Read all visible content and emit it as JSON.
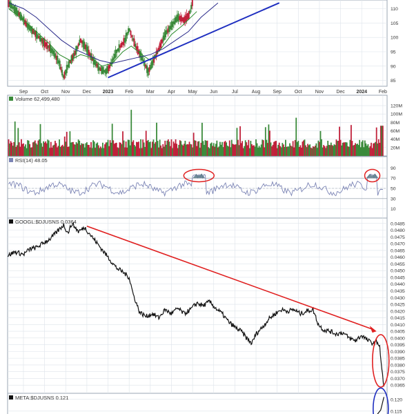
{
  "colors": {
    "background": "#ffffff",
    "panel_border": "#9aa6b3",
    "grid": "#dde3ea",
    "up_bar": "#3a8a3a",
    "down_bar": "#c0203a",
    "price_ma_fast": "#2a8a2a",
    "price_ma_slow": "#2a2a8a",
    "trendline_blue": "#1f2fc0",
    "rsi_line": "#7b84b5",
    "rsi_fill": "#5a7a8a",
    "ratio_line": "#111111",
    "trendline_red": "#e02020",
    "highlight_red": "#e02020",
    "highlight_blue": "#1f2fc0",
    "axis_text": "#333333"
  },
  "chart_data": [
    {
      "type": "candlestick",
      "name": "price-panel",
      "y_ticks": [
        "110",
        "105",
        "100",
        "95",
        "90",
        "85"
      ],
      "y_tick_values": [
        110,
        105,
        100,
        95,
        90,
        85
      ],
      "ylim": [
        83,
        113
      ],
      "x_ticks": [
        "Sep",
        "Oct",
        "Nov",
        "Dec",
        "2023",
        "Feb",
        "Mar",
        "Apr",
        "May",
        "Jun",
        "Jul",
        "Aug",
        "Sep",
        "Oct",
        "Nov",
        "Dec",
        "2024",
        "Feb"
      ],
      "x_tick_bold": [
        false,
        false,
        false,
        false,
        true,
        false,
        false,
        false,
        false,
        false,
        false,
        false,
        false,
        false,
        false,
        false,
        true,
        false
      ],
      "x_tick_month_index": [
        1,
        2,
        3,
        4,
        5,
        6,
        7,
        8,
        9,
        10,
        11,
        12,
        13,
        14,
        15,
        16,
        17,
        18
      ],
      "x_range_months": [
        0.25,
        18.2
      ],
      "price_path": [
        [
          0.3,
          112
        ],
        [
          0.8,
          108
        ],
        [
          1.2,
          104
        ],
        [
          1.6,
          101
        ],
        [
          2.0,
          98
        ],
        [
          2.4,
          95
        ],
        [
          2.7,
          91
        ],
        [
          2.9,
          86
        ],
        [
          3.1,
          90
        ],
        [
          3.4,
          94
        ],
        [
          3.7,
          99
        ],
        [
          4.0,
          96
        ],
        [
          4.3,
          92
        ],
        [
          4.6,
          89
        ],
        [
          4.9,
          88
        ],
        [
          5.1,
          90
        ],
        [
          5.4,
          95
        ],
        [
          5.8,
          99
        ],
        [
          6.0,
          103
        ],
        [
          6.3,
          97
        ],
        [
          6.6,
          93
        ],
        [
          6.9,
          88
        ],
        [
          7.1,
          91
        ],
        [
          7.4,
          96
        ],
        [
          7.7,
          101
        ],
        [
          8.0,
          104
        ],
        [
          8.3,
          107
        ],
        [
          8.6,
          106
        ],
        [
          8.85,
          108
        ],
        [
          9.05,
          114
        ]
      ],
      "ma_fast_path": [
        [
          0.3,
          110
        ],
        [
          1.0,
          106
        ],
        [
          1.6,
          102
        ],
        [
          2.2,
          98
        ],
        [
          2.7,
          94
        ],
        [
          3.2,
          92
        ],
        [
          3.7,
          94
        ],
        [
          4.2,
          93
        ],
        [
          4.7,
          90
        ],
        [
          5.2,
          91
        ],
        [
          5.7,
          95
        ],
        [
          6.1,
          97
        ],
        [
          6.6,
          94
        ],
        [
          7.0,
          92
        ],
        [
          7.5,
          96
        ],
        [
          8.0,
          101
        ],
        [
          8.5,
          104
        ],
        [
          9.2,
          109
        ]
      ],
      "ma_slow_path": [
        [
          0.3,
          112
        ],
        [
          1.0,
          110
        ],
        [
          1.6,
          107
        ],
        [
          2.2,
          103
        ],
        [
          2.8,
          99
        ],
        [
          3.4,
          96
        ],
        [
          4.0,
          94
        ],
        [
          4.6,
          92
        ],
        [
          5.2,
          91
        ],
        [
          5.8,
          92
        ],
        [
          6.4,
          93
        ],
        [
          7.0,
          94
        ],
        [
          7.6,
          96
        ],
        [
          8.2,
          99
        ],
        [
          8.8,
          102
        ],
        [
          9.4,
          107
        ],
        [
          10.2,
          112
        ]
      ],
      "trendline": [
        [
          5.0,
          86
        ],
        [
          13.1,
          112
        ]
      ]
    },
    {
      "type": "bar",
      "name": "volume-panel",
      "label": "Volume 62,499,480",
      "y_ticks": [
        "120M",
        "100M",
        "80M",
        "60M",
        "40M",
        "20M"
      ],
      "y_tick_values": [
        120,
        100,
        80,
        60,
        40,
        20
      ],
      "ylim": [
        0,
        125
      ]
    },
    {
      "type": "line",
      "name": "rsi-panel",
      "label": "RSI(14) 48.05",
      "y_ticks": [
        "90",
        "70",
        "50",
        "30",
        "10"
      ],
      "y_tick_values": [
        90,
        70,
        50,
        30,
        10
      ],
      "ylim": [
        0,
        100
      ],
      "reference_lines": [
        70,
        30
      ],
      "mid_line": 50,
      "highlights": [
        [
          9.3,
          72
        ],
        [
          17.5,
          72
        ]
      ]
    },
    {
      "type": "line",
      "name": "ratio-panel",
      "label": "GOOGL:$DJUSNS 0.0364",
      "y_ticks": [
        "0.0485",
        "0.0480",
        "0.0475",
        "0.0470",
        "0.0465",
        "0.0460",
        "0.0455",
        "0.0450",
        "0.0445",
        "0.0440",
        "0.0435",
        "0.0430",
        "0.0425",
        "0.0420",
        "0.0415",
        "0.0410",
        "0.0405",
        "0.0400",
        "0.0395",
        "0.0390",
        "0.0385",
        "0.0380",
        "0.0375",
        "0.0370",
        "0.0365"
      ],
      "y_tick_values": [
        0.0485,
        0.048,
        0.0475,
        0.047,
        0.0465,
        0.046,
        0.0455,
        0.045,
        0.0445,
        0.044,
        0.0435,
        0.043,
        0.0425,
        0.042,
        0.0415,
        0.041,
        0.0405,
        0.04,
        0.0395,
        0.039,
        0.0385,
        0.038,
        0.0375,
        0.037,
        0.0365
      ],
      "ylim": [
        0.0361,
        0.0488
      ],
      "path": [
        [
          0.25,
          0.0461
        ],
        [
          0.6,
          0.0464
        ],
        [
          1.0,
          0.0462
        ],
        [
          1.3,
          0.0466
        ],
        [
          1.6,
          0.0467
        ],
        [
          2.0,
          0.0471
        ],
        [
          2.3,
          0.0474
        ],
        [
          2.6,
          0.0479
        ],
        [
          2.9,
          0.0484
        ],
        [
          3.1,
          0.0478
        ],
        [
          3.3,
          0.0485
        ],
        [
          3.6,
          0.0479
        ],
        [
          3.9,
          0.0482
        ],
        [
          4.2,
          0.0476
        ],
        [
          4.5,
          0.047
        ],
        [
          4.8,
          0.0464
        ],
        [
          5.1,
          0.0458
        ],
        [
          5.4,
          0.0452
        ],
        [
          5.7,
          0.0449
        ],
        [
          6.0,
          0.0445
        ],
        [
          6.2,
          0.0432
        ],
        [
          6.5,
          0.0419
        ],
        [
          6.8,
          0.0416
        ],
        [
          7.1,
          0.0418
        ],
        [
          7.4,
          0.0415
        ],
        [
          7.7,
          0.0421
        ],
        [
          8.0,
          0.0418
        ],
        [
          8.3,
          0.0422
        ],
        [
          8.6,
          0.0418
        ],
        [
          8.9,
          0.0421
        ],
        [
          9.2,
          0.0426
        ],
        [
          9.5,
          0.0424
        ],
        [
          9.8,
          0.0427
        ],
        [
          10.1,
          0.0422
        ],
        [
          10.4,
          0.0418
        ],
        [
          10.7,
          0.0412
        ],
        [
          11.0,
          0.0408
        ],
        [
          11.3,
          0.0405
        ],
        [
          11.6,
          0.0399
        ],
        [
          11.8,
          0.0396
        ],
        [
          12.0,
          0.0403
        ],
        [
          12.3,
          0.0408
        ],
        [
          12.6,
          0.0414
        ],
        [
          12.9,
          0.0418
        ],
        [
          13.2,
          0.0421
        ],
        [
          13.5,
          0.042
        ],
        [
          13.8,
          0.0421
        ],
        [
          14.1,
          0.0418
        ],
        [
          14.4,
          0.042
        ],
        [
          14.7,
          0.0421
        ],
        [
          14.95,
          0.041
        ],
        [
          15.2,
          0.0406
        ],
        [
          15.5,
          0.0405
        ],
        [
          15.8,
          0.0403
        ],
        [
          16.1,
          0.0404
        ],
        [
          16.4,
          0.04
        ],
        [
          16.7,
          0.0398
        ],
        [
          17.0,
          0.0402
        ],
        [
          17.3,
          0.0398
        ],
        [
          17.55,
          0.0396
        ],
        [
          17.75,
          0.0397
        ],
        [
          17.85,
          0.0394
        ],
        [
          17.95,
          0.0376
        ],
        [
          18.05,
          0.0364
        ]
      ],
      "trendline": [
        [
          4.0,
          0.0483
        ],
        [
          17.7,
          0.0405
        ]
      ],
      "highlight_ellipse": [
        17.9,
        0.0383
      ]
    },
    {
      "type": "line",
      "name": "meta-panel",
      "label": "META:$DJUSNS 0.121",
      "y_ticks": [
        "0.120",
        "0.115"
      ],
      "y_tick_values": [
        0.12,
        0.115
      ],
      "ylim": [
        0.112,
        0.122
      ],
      "path": [
        [
          17.6,
          0.112
        ],
        [
          17.9,
          0.1155
        ],
        [
          18.05,
          0.121
        ]
      ],
      "highlight_ellipse": [
        17.9,
        0.116
      ]
    }
  ]
}
